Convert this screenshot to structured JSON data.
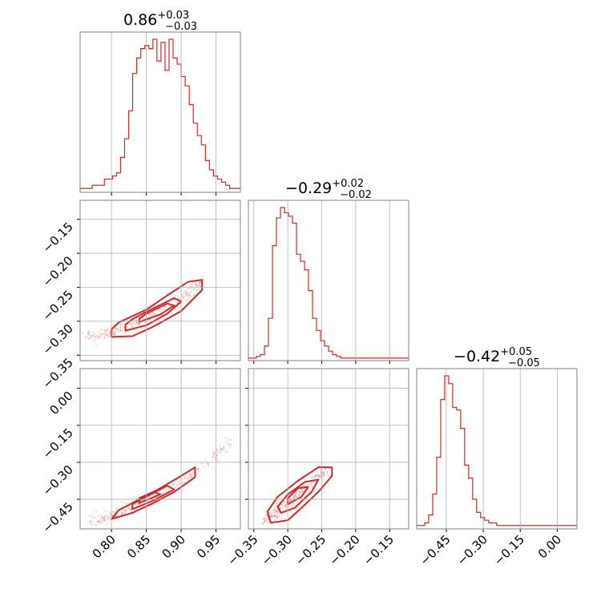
{
  "colors": {
    "series": "#d62728",
    "contour_fill": "#f4b8b8",
    "scatter": "#e88080"
  },
  "chart_data": {
    "type": "corner",
    "grid": true,
    "parameters": [
      {
        "range": [
          0.755,
          0.985
        ],
        "ticks": [
          0.8,
          0.85,
          0.9,
          0.95
        ],
        "tick_labels": [
          "0.80",
          "0.85",
          "0.90",
          "0.95"
        ],
        "title_value": "0.86",
        "title_upper": "+0.03",
        "title_lower": "−0.03",
        "hist_edges_start": 0.755,
        "hist_edges_step": 0.0058,
        "hist_counts": [
          1,
          1,
          1,
          2,
          2,
          2,
          4,
          4,
          5,
          6,
          11,
          17,
          26,
          38,
          43,
          46,
          47,
          46,
          49,
          42,
          48,
          39,
          49,
          43,
          41,
          37,
          34,
          28,
          22,
          18,
          15,
          10,
          7,
          5,
          4,
          3,
          2,
          1,
          1,
          1
        ]
      },
      {
        "range": [
          -0.358,
          -0.122
        ],
        "ticks": [
          -0.35,
          -0.3,
          -0.25,
          -0.2,
          -0.15
        ],
        "tick_labels": [
          "−0.35",
          "−0.30",
          "−0.25",
          "−0.20",
          "−0.15"
        ],
        "title_value": "−0.29",
        "title_upper": "+0.02",
        "title_lower": "−0.02",
        "hist_edges_start": -0.358,
        "hist_edges_step": 0.0059,
        "hist_counts": [
          1,
          1,
          2,
          3,
          8,
          24,
          66,
          82,
          88,
          85,
          83,
          79,
          61,
          57,
          52,
          40,
          24,
          17,
          11,
          8,
          5,
          3,
          2,
          1,
          1,
          1,
          1,
          1,
          1,
          1,
          1,
          1,
          1,
          1,
          1,
          1,
          1,
          1,
          1,
          1
        ]
      },
      {
        "range": [
          -0.57,
          0.08
        ],
        "ticks": [
          -0.45,
          -0.3,
          -0.15,
          0.0
        ],
        "tick_labels": [
          "−0.45",
          "−0.30",
          "−0.15",
          "0.00"
        ],
        "title_value": "−0.42",
        "title_upper": "+0.05",
        "title_lower": "−0.05",
        "hist_edges_start": -0.57,
        "hist_edges_step": 0.0162,
        "hist_counts": [
          1,
          1,
          2,
          5,
          13,
          27,
          49,
          58,
          55,
          46,
          45,
          38,
          24,
          19,
          11,
          6,
          4,
          3,
          2,
          2,
          1,
          1,
          1,
          1,
          1,
          1,
          1,
          1,
          1,
          1,
          1,
          1,
          1,
          1,
          1,
          1,
          1,
          1,
          1,
          1
        ]
      }
    ],
    "pair_panels": [
      {
        "x_param": 0,
        "y_param": 1,
        "ridge": [
          [
            0.765,
            -0.321
          ],
          [
            0.8,
            -0.317
          ],
          [
            0.83,
            -0.306
          ],
          [
            0.86,
            -0.291
          ],
          [
            0.89,
            -0.274
          ],
          [
            0.915,
            -0.256
          ],
          [
            0.93,
            -0.241
          ]
        ],
        "contours": [
          [
            [
              0.8,
              -0.323
            ],
            [
              0.83,
              -0.322
            ],
            [
              0.86,
              -0.308
            ],
            [
              0.9,
              -0.285
            ],
            [
              0.93,
              -0.254
            ],
            [
              0.93,
              -0.239
            ],
            [
              0.91,
              -0.242
            ],
            [
              0.88,
              -0.262
            ],
            [
              0.85,
              -0.283
            ],
            [
              0.81,
              -0.302
            ],
            [
              0.8,
              -0.312
            ],
            [
              0.8,
              -0.323
            ]
          ],
          [
            [
              0.82,
              -0.314
            ],
            [
              0.85,
              -0.306
            ],
            [
              0.88,
              -0.289
            ],
            [
              0.9,
              -0.271
            ],
            [
              0.89,
              -0.266
            ],
            [
              0.86,
              -0.281
            ],
            [
              0.83,
              -0.297
            ],
            [
              0.82,
              -0.305
            ],
            [
              0.82,
              -0.314
            ]
          ],
          [
            [
              0.84,
              -0.301
            ],
            [
              0.87,
              -0.29
            ],
            [
              0.89,
              -0.277
            ],
            [
              0.88,
              -0.274
            ],
            [
              0.85,
              -0.289
            ],
            [
              0.84,
              -0.296
            ],
            [
              0.84,
              -0.301
            ]
          ]
        ]
      },
      {
        "x_param": 0,
        "y_param": 2,
        "ridge": [
          [
            0.77,
            -0.54
          ],
          [
            0.8,
            -0.52
          ],
          [
            0.83,
            -0.48
          ],
          [
            0.86,
            -0.45
          ],
          [
            0.89,
            -0.4
          ],
          [
            0.92,
            -0.35
          ],
          [
            0.95,
            -0.27
          ],
          [
            0.97,
            -0.22
          ]
        ],
        "contours": [
          [
            [
              0.8,
              -0.53
            ],
            [
              0.83,
              -0.505
            ],
            [
              0.86,
              -0.465
            ],
            [
              0.89,
              -0.42
            ],
            [
              0.92,
              -0.36
            ],
            [
              0.92,
              -0.32
            ],
            [
              0.9,
              -0.355
            ],
            [
              0.87,
              -0.405
            ],
            [
              0.84,
              -0.45
            ],
            [
              0.81,
              -0.495
            ],
            [
              0.8,
              -0.53
            ]
          ],
          [
            [
              0.83,
              -0.49
            ],
            [
              0.86,
              -0.455
            ],
            [
              0.89,
              -0.41
            ],
            [
              0.88,
              -0.395
            ],
            [
              0.85,
              -0.44
            ],
            [
              0.83,
              -0.47
            ],
            [
              0.83,
              -0.49
            ]
          ],
          [
            [
              0.84,
              -0.465
            ],
            [
              0.87,
              -0.43
            ],
            [
              0.86,
              -0.42
            ],
            [
              0.84,
              -0.445
            ],
            [
              0.84,
              -0.465
            ]
          ]
        ]
      },
      {
        "x_param": 1,
        "y_param": 2,
        "ridge": [
          [
            -0.333,
            -0.53
          ],
          [
            -0.315,
            -0.5
          ],
          [
            -0.3,
            -0.46
          ],
          [
            -0.285,
            -0.42
          ],
          [
            -0.26,
            -0.37
          ],
          [
            -0.24,
            -0.33
          ]
        ],
        "contours": [
          [
            [
              -0.325,
              -0.545
            ],
            [
              -0.3,
              -0.535
            ],
            [
              -0.28,
              -0.485
            ],
            [
              -0.255,
              -0.42
            ],
            [
              -0.235,
              -0.355
            ],
            [
              -0.235,
              -0.32
            ],
            [
              -0.255,
              -0.32
            ],
            [
              -0.285,
              -0.375
            ],
            [
              -0.315,
              -0.44
            ],
            [
              -0.33,
              -0.5
            ],
            [
              -0.325,
              -0.545
            ]
          ],
          [
            [
              -0.31,
              -0.505
            ],
            [
              -0.29,
              -0.485
            ],
            [
              -0.265,
              -0.42
            ],
            [
              -0.255,
              -0.37
            ],
            [
              -0.275,
              -0.38
            ],
            [
              -0.3,
              -0.43
            ],
            [
              -0.315,
              -0.48
            ],
            [
              -0.31,
              -0.505
            ]
          ],
          [
            [
              -0.3,
              -0.47
            ],
            [
              -0.28,
              -0.44
            ],
            [
              -0.27,
              -0.4
            ],
            [
              -0.285,
              -0.405
            ],
            [
              -0.3,
              -0.445
            ],
            [
              -0.3,
              -0.47
            ]
          ]
        ]
      }
    ]
  }
}
